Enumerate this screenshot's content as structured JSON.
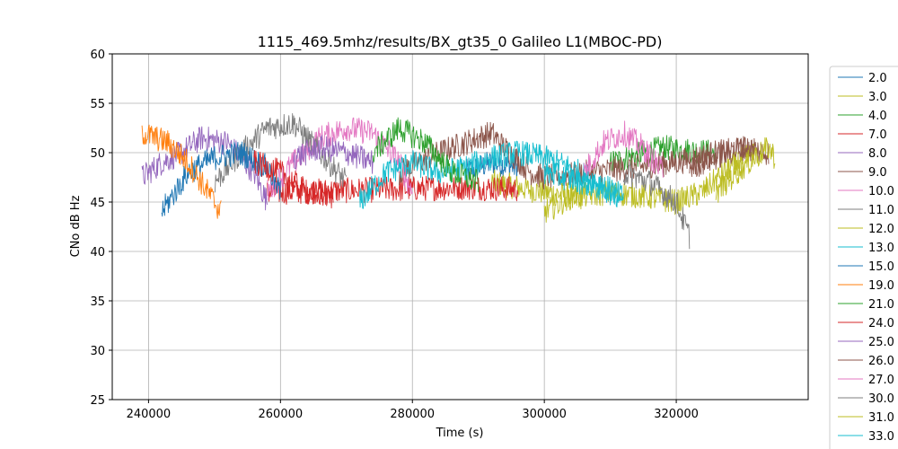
{
  "chart_data": {
    "type": "line",
    "title": "1115_469.5mhz/results/BX_gt35_0 Galileo L1(MBOC-PD)",
    "xlabel": "Time (s)",
    "ylabel": "CNo dB Hz",
    "xlim": [
      234500,
      340000
    ],
    "ylim": [
      25,
      60
    ],
    "xticks": [
      240000,
      260000,
      280000,
      300000,
      320000
    ],
    "yticks": [
      25,
      30,
      35,
      40,
      45,
      50,
      55,
      60
    ],
    "grid": true,
    "legend_position": "right-outside",
    "series": [
      {
        "name": "2.0",
        "color": "#1f77b4",
        "points": [
          [
            288000,
            48
          ],
          [
            292000,
            49
          ],
          [
            296000,
            48.5
          ]
        ]
      },
      {
        "name": "3.0",
        "color": "#bcbd22",
        "points": [
          [
            292000,
            47
          ],
          [
            300000,
            46
          ],
          [
            306000,
            45.5
          ]
        ]
      },
      {
        "name": "4.0",
        "color": "#2ca02c",
        "points": [
          [
            310000,
            49
          ],
          [
            318000,
            50.5
          ],
          [
            326000,
            50
          ]
        ]
      },
      {
        "name": "7.0",
        "color": "#d62728",
        "points": [
          [
            258000,
            46
          ],
          [
            272000,
            46.2
          ],
          [
            288000,
            46.5
          ],
          [
            296000,
            46.3
          ]
        ]
      },
      {
        "name": "8.0",
        "color": "#9467bd",
        "points": [
          [
            239000,
            47.5
          ],
          [
            242000,
            49
          ],
          [
            245000,
            50
          ],
          [
            248000,
            51.5
          ],
          [
            252000,
            51
          ],
          [
            256000,
            48
          ],
          [
            258000,
            45
          ]
        ]
      },
      {
        "name": "9.0",
        "color": "#8c564b",
        "points": [
          [
            278000,
            48
          ],
          [
            284000,
            50
          ],
          [
            288000,
            51
          ],
          [
            292000,
            52
          ],
          [
            294000,
            50.5
          ],
          [
            298000,
            48
          ],
          [
            300000,
            47.5
          ],
          [
            320000,
            49
          ],
          [
            326000,
            50
          ],
          [
            332000,
            50.5
          ]
        ]
      },
      {
        "name": "10.0",
        "color": "#e377c2",
        "points": [
          [
            258000,
            46
          ],
          [
            262000,
            49
          ],
          [
            266000,
            51.5
          ],
          [
            270000,
            52.5
          ],
          [
            274000,
            52
          ],
          [
            278000,
            49
          ],
          [
            280000,
            46
          ]
        ]
      },
      {
        "name": "11.0",
        "color": "#7f7f7f",
        "points": [
          [
            250000,
            47
          ],
          [
            254000,
            50
          ],
          [
            258000,
            52.5
          ],
          [
            262000,
            53
          ],
          [
            266000,
            50
          ],
          [
            270000,
            47
          ]
        ]
      },
      {
        "name": "12.0",
        "color": "#bcbd22",
        "points": [
          [
            300000,
            44
          ],
          [
            304000,
            45.5
          ],
          [
            310000,
            46
          ],
          [
            316000,
            45.5
          ],
          [
            320000,
            45
          ],
          [
            324000,
            46
          ],
          [
            328000,
            48.5
          ],
          [
            332000,
            50
          ]
        ]
      },
      {
        "name": "13.0",
        "color": "#17becf",
        "points": [
          [
            272000,
            45
          ],
          [
            276000,
            48
          ],
          [
            280000,
            49
          ],
          [
            284000,
            48
          ],
          [
            288000,
            48.5
          ],
          [
            292000,
            49.5
          ],
          [
            296000,
            50
          ],
          [
            300000,
            49.5
          ],
          [
            304000,
            48.5
          ],
          [
            308000,
            47
          ],
          [
            312000,
            45.5
          ]
        ]
      },
      {
        "name": "15.0",
        "color": "#1f77b4",
        "points": [
          [
            242000,
            44
          ],
          [
            246000,
            48
          ],
          [
            250000,
            49.5
          ],
          [
            254000,
            50
          ],
          [
            258000,
            48.5
          ],
          [
            260000,
            46
          ]
        ]
      },
      {
        "name": "19.0",
        "color": "#ff7f0e",
        "points": [
          [
            239000,
            52
          ],
          [
            243000,
            51
          ],
          [
            246000,
            49
          ],
          [
            249000,
            46
          ],
          [
            251000,
            44
          ]
        ]
      },
      {
        "name": "21.0",
        "color": "#2ca02c",
        "points": [
          [
            274000,
            50
          ],
          [
            278000,
            52.5
          ],
          [
            282000,
            51
          ],
          [
            286000,
            48
          ],
          [
            290000,
            47
          ]
        ]
      },
      {
        "name": "24.0",
        "color": "#d62728",
        "points": [
          [
            256000,
            49
          ],
          [
            260000,
            48
          ],
          [
            264000,
            46
          ],
          [
            268000,
            45.5
          ]
        ]
      },
      {
        "name": "25.0",
        "color": "#9467bd",
        "points": [
          [
            262000,
            49.5
          ],
          [
            266000,
            50.5
          ],
          [
            270000,
            50
          ],
          [
            274000,
            49
          ]
        ]
      },
      {
        "name": "26.0",
        "color": "#8c564b",
        "points": [
          [
            322000,
            48.5
          ],
          [
            326000,
            49.5
          ],
          [
            330000,
            50.5
          ],
          [
            334000,
            50
          ]
        ]
      },
      {
        "name": "27.0",
        "color": "#e377c2",
        "points": [
          [
            306000,
            48
          ],
          [
            309000,
            51
          ],
          [
            312000,
            52
          ],
          [
            315000,
            50.5
          ],
          [
            318000,
            48
          ]
        ]
      },
      {
        "name": "30.0",
        "color": "#7f7f7f",
        "points": [
          [
            312000,
            48
          ],
          [
            316000,
            47
          ],
          [
            320000,
            45
          ],
          [
            322000,
            41.5
          ]
        ]
      },
      {
        "name": "31.0",
        "color": "#bcbd22",
        "points": [
          [
            326000,
            46
          ],
          [
            330000,
            48.5
          ],
          [
            334000,
            50.5
          ],
          [
            335000,
            49.5
          ]
        ]
      },
      {
        "name": "33.0",
        "color": "#17becf",
        "points": [
          [
            300000,
            48
          ],
          [
            306000,
            47
          ],
          [
            312000,
            45.5
          ]
        ]
      }
    ]
  }
}
